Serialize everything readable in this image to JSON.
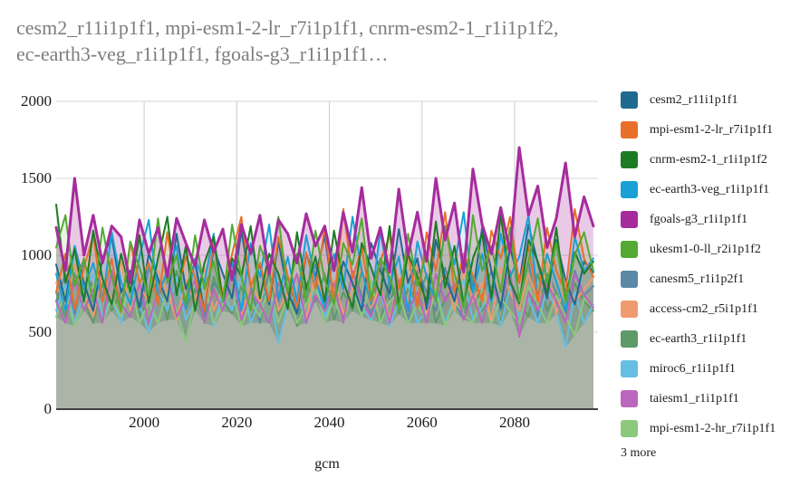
{
  "title": {
    "line1": "cesm2_r11i1p1f1, mpi-esm1-2-lr_r7i1p1f1, cnrm-esm2-1_r1i1p1f2,",
    "line2": "ec-earth3-veg_r1i1p1f1, fgoals-g3_r1i1p1f1…"
  },
  "legend": {
    "more_label": "3 more"
  },
  "chart_data": {
    "type": "area",
    "title": "cesm2_r11i1p1f1, mpi-esm1-2-lr_r7i1p1f1, cnrm-esm2-1_r1i1p1f2, ec-earth3-veg_r1i1p1f1, fgoals-g3_r1i1p1f1…",
    "xlabel": "gcm",
    "ylabel": "",
    "xlim": [
      1981,
      2098
    ],
    "ylim": [
      0,
      2000
    ],
    "x_ticks": [
      2000,
      2020,
      2040,
      2060,
      2080
    ],
    "y_ticks": [
      0,
      500,
      1000,
      1500,
      2000
    ],
    "grid": true,
    "legend_position": "right",
    "overlap_fill_color": "#abb5a7",
    "grid_color": "#d6d6d6",
    "axis_line_color": "#424242",
    "x": [
      1981,
      1983,
      1985,
      1987,
      1989,
      1991,
      1993,
      1995,
      1997,
      1999,
      2001,
      2003,
      2005,
      2007,
      2009,
      2011,
      2013,
      2015,
      2017,
      2019,
      2021,
      2023,
      2025,
      2027,
      2029,
      2031,
      2033,
      2035,
      2037,
      2039,
      2041,
      2043,
      2045,
      2047,
      2049,
      2051,
      2053,
      2055,
      2057,
      2059,
      2061,
      2063,
      2065,
      2067,
      2069,
      2071,
      2073,
      2075,
      2077,
      2079,
      2081,
      2083,
      2085,
      2087,
      2089,
      2091,
      2093,
      2095,
      2097
    ],
    "series": [
      {
        "name": "cesm2_r11i1p1f1",
        "color": "#20698f",
        "values": [
          940,
          700,
          1060,
          820,
          640,
          980,
          1120,
          760,
          900,
          660,
          1010,
          850,
          700,
          1140,
          780,
          960,
          640,
          1050,
          880,
          720,
          1160,
          800,
          940,
          680,
          1090,
          760,
          620,
          1010,
          860,
          1130,
          700,
          960,
          820,
          640,
          1080,
          900,
          750,
          1170,
          820,
          980,
          650,
          1100,
          860,
          700,
          1010,
          760,
          1180,
          900,
          660,
          1050,
          820,
          1200,
          950,
          720,
          1100,
          840,
          680,
          960,
          890
        ]
      },
      {
        "name": "mpi-esm1-2-lr_r7i1p1f1",
        "color": "#e8702a",
        "values": [
          760,
          1010,
          650,
          920,
          1130,
          700,
          980,
          630,
          1080,
          820,
          950,
          680,
          1150,
          760,
          990,
          860,
          640,
          1090,
          730,
          1010,
          1250,
          800,
          950,
          700,
          1120,
          870,
          660,
          1020,
          780,
          1180,
          690,
          1300,
          850,
          1050,
          700,
          960,
          1130,
          780,
          1020,
          660,
          1150,
          900,
          1280,
          760,
          1010,
          870,
          700,
          1160,
          980,
          1250,
          820,
          1060,
          700,
          1180,
          900,
          760,
          1300,
          980,
          860
        ]
      },
      {
        "name": "cnrm-esm2-1_r1i1p1f2",
        "color": "#1e7b25",
        "values": [
          1330,
          820,
          1040,
          700,
          1160,
          850,
          680,
          1010,
          760,
          1130,
          690,
          980,
          1250,
          740,
          1060,
          640,
          950,
          1120,
          700,
          980,
          860,
          1190,
          720,
          1010,
          880,
          650,
          1150,
          780,
          990,
          700,
          1160,
          830,
          660,
          1080,
          920,
          740,
          1190,
          680,
          1010,
          860,
          700,
          1220,
          790,
          1060,
          680,
          980,
          1140,
          720,
          1260,
          830,
          690,
          1100,
          960,
          750,
          1180,
          700,
          1020,
          880,
          960
        ]
      },
      {
        "name": "ec-earth3-veg_r1i1p1f1",
        "color": "#1ba0d5",
        "values": [
          880,
          640,
          1060,
          780,
          950,
          700,
          1150,
          830,
          680,
          990,
          1230,
          740,
          900,
          1060,
          650,
          980,
          820,
          1140,
          700,
          950,
          640,
          1080,
          860,
          1200,
          720,
          990,
          700,
          1130,
          840,
          660,
          1010,
          780,
          1250,
          900,
          680,
          1160,
          810,
          990,
          640,
          1090,
          860,
          700,
          1190,
          940,
          1280,
          760,
          1010,
          700,
          1140,
          860,
          990,
          1260,
          720,
          1010,
          830,
          640,
          1120,
          900,
          980
        ]
      },
      {
        "name": "fgoals-g3_r1i1p1f1",
        "color": "#a62c9d",
        "values": [
          1180,
          900,
          1500,
          1000,
          1260,
          950,
          1190,
          1120,
          820,
          1230,
          1010,
          1180,
          860,
          1240,
          1080,
          930,
          1230,
          1020,
          1170,
          840,
          1200,
          1010,
          1260,
          880,
          1230,
          1140,
          950,
          1270,
          1060,
          1190,
          900,
          1280,
          1020,
          1440,
          980,
          1180,
          890,
          1430,
          1000,
          1280,
          960,
          1500,
          1100,
          1340,
          890,
          1560,
          1200,
          1010,
          1310,
          1020,
          1700,
          1260,
          1450,
          1050,
          1240,
          1600,
          1120,
          1380,
          1190
        ]
      },
      {
        "name": "ukesm1-0-ll_r2i1p1f2",
        "color": "#53aa32",
        "values": [
          1050,
          1260,
          800,
          980,
          700,
          1180,
          860,
          640,
          1090,
          920,
          740,
          1240,
          820,
          1000,
          680,
          1130,
          780,
          960,
          700,
          1200,
          860,
          640,
          1060,
          900,
          1250,
          760,
          1010,
          700,
          1160,
          840,
          680,
          1080,
          940,
          1240,
          720,
          980,
          860,
          650,
          1140,
          800,
          1020,
          700,
          1190,
          880,
          660,
          1260,
          900,
          1060,
          760,
          1180,
          700,
          960,
          1240,
          820,
          1080,
          690,
          1000,
          1150,
          900
        ]
      },
      {
        "name": "canesm5_r1i1p2f1",
        "color": "#5c89a5",
        "values": [
          700,
          880,
          620,
          960,
          780,
          580,
          900,
          700,
          840,
          600,
          920,
          760,
          640,
          880,
          700,
          960,
          600,
          820,
          740,
          900,
          640,
          800,
          560,
          920,
          700,
          860,
          620,
          780,
          940,
          660,
          820,
          580,
          900,
          740,
          620,
          960,
          700,
          840,
          580,
          900,
          760,
          640,
          920,
          700,
          580,
          860,
          740,
          900,
          640,
          820,
          700,
          960,
          600,
          880,
          760,
          620,
          900,
          740,
          800
        ]
      },
      {
        "name": "access-cm2_r5i1p1f1",
        "color": "#f09a70",
        "values": [
          820,
          680,
          940,
          740,
          600,
          860,
          700,
          960,
          640,
          800,
          700,
          900,
          760,
          580,
          840,
          700,
          920,
          640,
          780,
          880,
          600,
          820,
          700,
          960,
          640,
          760,
          880,
          580,
          900,
          700,
          840,
          620,
          780,
          920,
          660,
          800,
          580,
          860,
          700,
          940,
          620,
          780,
          880,
          640,
          900,
          700,
          820,
          580,
          920,
          760,
          640,
          880,
          700,
          960,
          620,
          840,
          700,
          780,
          860
        ]
      },
      {
        "name": "ec-earth3_r1i1p1f1",
        "color": "#5d9a68",
        "values": [
          760,
          600,
          880,
          700,
          560,
          820,
          640,
          760,
          880,
          600,
          720,
          840,
          580,
          900,
          660,
          780,
          560,
          860,
          700,
          620,
          800,
          580,
          740,
          880,
          620,
          760,
          540,
          820,
          700,
          880,
          580,
          760,
          640,
          900,
          700,
          560,
          840,
          620,
          780,
          700,
          880,
          560,
          720,
          800,
          600,
          860,
          640,
          760,
          560,
          840,
          700,
          600,
          880,
          640,
          760,
          580,
          820,
          700,
          640
        ]
      },
      {
        "name": "miroc6_r1i1p1f1",
        "color": "#66bee5",
        "values": [
          640,
          820,
          560,
          760,
          880,
          600,
          720,
          560,
          840,
          680,
          500,
          780,
          640,
          860,
          580,
          700,
          820,
          540,
          760,
          640,
          880,
          560,
          720,
          800,
          430,
          680,
          760,
          560,
          840,
          600,
          720,
          560,
          800,
          660,
          580,
          760,
          540,
          700,
          820,
          560,
          640,
          780,
          560,
          720,
          840,
          580,
          660,
          760,
          540,
          800,
          600,
          720,
          560,
          780,
          640,
          400,
          760,
          560,
          680
        ]
      },
      {
        "name": "taiesm1_r1i1p1f1",
        "color": "#bc66bd",
        "values": [
          700,
          560,
          840,
          640,
          780,
          560,
          900,
          680,
          600,
          820,
          560,
          760,
          880,
          600,
          720,
          840,
          560,
          780,
          640,
          900,
          580,
          760,
          680,
          560,
          820,
          700,
          880,
          560,
          740,
          640,
          820,
          560,
          900,
          700,
          600,
          780,
          560,
          840,
          640,
          760,
          560,
          880,
          700,
          820,
          580,
          740,
          560,
          800,
          680,
          900,
          470,
          760,
          640,
          820,
          700,
          560,
          880,
          740,
          660
        ]
      },
      {
        "name": "mpi-esm1-2-hr_r7i1p1f1",
        "color": "#8dc87d",
        "values": [
          600,
          760,
          540,
          680,
          800,
          560,
          720,
          600,
          840,
          560,
          700,
          560,
          780,
          640,
          440,
          720,
          840,
          560,
          680,
          760,
          540,
          700,
          600,
          820,
          560,
          740,
          560,
          680,
          800,
          560,
          720,
          560,
          780,
          600,
          840,
          560,
          700,
          760,
          560,
          680,
          580,
          760,
          540,
          700,
          620,
          560,
          780,
          560,
          720,
          640,
          560,
          800,
          680,
          560,
          740,
          600,
          480,
          720,
          660
        ]
      }
    ]
  }
}
